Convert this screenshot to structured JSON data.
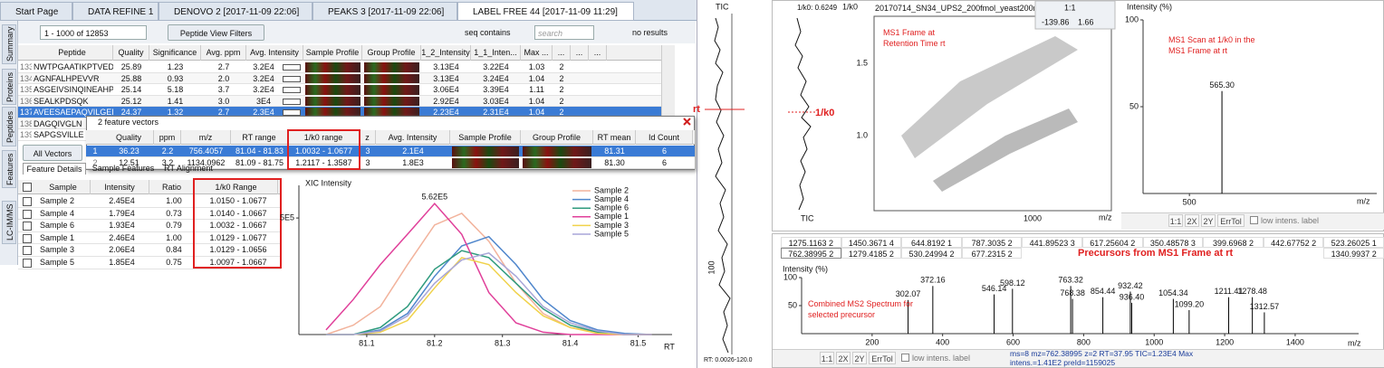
{
  "tabs": [
    "Start Page",
    "DATA REFINE 1",
    "DENOVO 2 [2017-11-09 22:06]",
    "PEAKS 3 [2017-11-09 22:06]",
    "LABEL FREE 44 [2017-11-09 11:29]"
  ],
  "side_tabs": [
    "Summary",
    "Proteins",
    "Peptides",
    "Features",
    "LC-IM/MS"
  ],
  "toolbar": {
    "range": "1 - 1000 of 12853",
    "filters": "Peptide View Filters",
    "filter_mode": "seq contains",
    "search": "search",
    "result": "no results"
  },
  "peptide_table": {
    "columns": [
      "Peptide",
      "Quality",
      "Significance",
      "Avg. ppm",
      "Avg. Intensity",
      "Sample Profile",
      "Group Profile",
      "1_2_Intensity",
      "1_1_Inten...",
      "Max ...",
      "...",
      "...",
      "..."
    ],
    "rows": [
      [
        "133",
        "NWTPGAATIKPTVEDSK",
        "25.89",
        "1.23",
        "2.7",
        "3.2E4",
        "3.13E4",
        "3.22E4",
        "1.03",
        "2"
      ],
      [
        "134",
        "AGNFALHPEVVR",
        "25.88",
        "0.93",
        "2.0",
        "3.2E4",
        "3.13E4",
        "3.24E4",
        "1.04",
        "2"
      ],
      [
        "135",
        "ASGEIVSINQINEAHPTK",
        "25.14",
        "5.18",
        "3.7",
        "3.2E4",
        "3.06E4",
        "3.39E4",
        "1.11",
        "2"
      ],
      [
        "136",
        "SEALKPDSQK",
        "25.12",
        "1.41",
        "3.0",
        "3E4",
        "2.92E4",
        "3.03E4",
        "1.04",
        "2"
      ],
      [
        "137",
        "AVEESAEPAQVILGED...",
        "24.37",
        "1.32",
        "2.7",
        "2.3E4",
        "2.23E4",
        "2.31E4",
        "1.04",
        "2"
      ],
      [
        "138",
        "DAGQIVGLN"
      ],
      [
        "139",
        "SAPGSVILLE"
      ]
    ]
  },
  "feature_vectors": {
    "title": "2 feature vectors",
    "columns": [
      "Quality",
      "ppm",
      "m/z",
      "RT range",
      "1/k0 range",
      "z",
      "Avg. Intensity",
      "Sample Profile",
      "Group Profile",
      "RT mean",
      "Id Count"
    ],
    "rows": [
      [
        "1",
        "36.23",
        "2.2",
        "756.4057",
        "81.04 - 81.83",
        "1.0032 - 1.0677",
        "3",
        "2.1E4",
        "81.31",
        "6"
      ],
      [
        "2",
        "12.51",
        "3.2",
        "1134.0962",
        "81.09 - 81.75",
        "1.2117 - 1.3587",
        "3",
        "1.8E3",
        "81.30",
        "6"
      ]
    ]
  },
  "features": {
    "button": "All Vectors",
    "subtabs": [
      "Feature Details",
      "Sample Features",
      "RT Alignment"
    ],
    "columns": [
      "Sample",
      "Intensity",
      "Ratio",
      "1/k0 Range"
    ],
    "rows": [
      [
        "Sample 2",
        "2.45E4",
        "1.00",
        "1.0150 - 1.0677"
      ],
      [
        "Sample 4",
        "1.79E4",
        "0.73",
        "1.0140 - 1.0667"
      ],
      [
        "Sample 6",
        "1.93E4",
        "0.79",
        "1.0032 - 1.0667"
      ],
      [
        "Sample 1",
        "2.46E4",
        "1.00",
        "1.0129 - 1.0677"
      ],
      [
        "Sample 3",
        "2.06E4",
        "0.84",
        "1.0129 - 1.0656"
      ],
      [
        "Sample 5",
        "1.85E4",
        "0.75",
        "1.0097 - 1.0667"
      ]
    ]
  },
  "tic": {
    "title": "TIC",
    "marker": "rt",
    "tick": "100",
    "range": "RT: 0.0026-120.0"
  },
  "k0_strip": {
    "readout": "1/k0: 0.6249",
    "marker": "1/k0",
    "title": "TIC"
  },
  "ms1_frame": {
    "y_label": "1/k0",
    "title": "20170714_SN34_UPS2_200fmol_yeast200ng_",
    "readout": [
      "-139.86",
      "1.66"
    ],
    "zoom": "1:1",
    "yticks": [
      "1.5",
      "1.0"
    ],
    "xticks": [
      "1000"
    ],
    "x_label": "m/z",
    "annotation": "MS1 Frame at Retention Time rt"
  },
  "spectrum_toolbar": {
    "buttons": [
      "1:1",
      "2X",
      "2Y",
      "ErrTol"
    ],
    "option": "low intens. label"
  },
  "precursors": {
    "rows": [
      [
        "1275.1163 2",
        "1450.3671 4",
        "644.8192 1",
        "787.3035 2",
        "441.89523 3",
        "617.25604 2",
        "350.48578 3",
        "399.6968 2",
        "442.67752 2",
        "523.26025 1"
      ],
      [
        "762.38995 2",
        "1279.4185 2",
        "530.24994 2",
        "677.2315 2",
        "1340.9937 2"
      ]
    ],
    "overlay": "Precursors from MS1 Frame at rt"
  },
  "status": "ms=8 mz=762.38995 z=2 RT=37.95 TIC=1.23E4 Max intens.=1.41E2 preId=1159025",
  "chart_data": [
    {
      "type": "line",
      "y_label": "XIC Intensity",
      "x_label": "RT",
      "x": [
        81.04,
        81.08,
        81.12,
        81.16,
        81.2,
        81.24,
        81.28,
        81.32,
        81.36,
        81.4,
        81.44,
        81.48,
        81.52
      ],
      "series": [
        {
          "name": "Sample 2",
          "color": "#f2b39c",
          "values": [
            0,
            40000,
            120000,
            300000,
            470000,
            520000,
            400000,
            220000,
            90000,
            30000,
            10000,
            0,
            0
          ]
        },
        {
          "name": "Sample 4",
          "color": "#4f86cc",
          "values": [
            0,
            0,
            20000,
            90000,
            250000,
            380000,
            420000,
            300000,
            150000,
            60000,
            20000,
            5000,
            0
          ]
        },
        {
          "name": "Sample 6",
          "color": "#2f9b7e",
          "values": [
            0,
            0,
            30000,
            120000,
            280000,
            360000,
            330000,
            220000,
            110000,
            40000,
            10000,
            0,
            0
          ]
        },
        {
          "name": "Sample 1",
          "color": "#e0409a",
          "values": [
            20000,
            150000,
            300000,
            430000,
            562000,
            430000,
            180000,
            50000,
            10000,
            0,
            0,
            0,
            0
          ]
        },
        {
          "name": "Sample 3",
          "color": "#f0d24a",
          "values": [
            0,
            0,
            10000,
            60000,
            200000,
            330000,
            300000,
            180000,
            80000,
            30000,
            5000,
            0,
            0
          ]
        },
        {
          "name": "Sample 5",
          "color": "#a8a6d8",
          "values": [
            0,
            0,
            15000,
            80000,
            220000,
            320000,
            350000,
            250000,
            120000,
            50000,
            15000,
            0,
            0
          ]
        }
      ],
      "xlim": [
        81.0,
        81.55
      ],
      "ylim": [
        0,
        640000
      ],
      "xticks": [
        81.1,
        81.2,
        81.3,
        81.4,
        81.5
      ],
      "yticks": [
        {
          "value": 500000,
          "label": "5E5"
        }
      ],
      "peak_label": "5.62E5"
    },
    {
      "type": "stem",
      "y_label": "Intensity (%)",
      "x_label": "m/z",
      "annotation": "MS1 Scan at 1/k0 in the MS1 Frame at rt",
      "x": [
        565.3
      ],
      "x_labels": [
        "565.30"
      ],
      "values": [
        59
      ],
      "color": "#000000",
      "xlim": [
        407,
        876
      ],
      "ylim": [
        0,
        100
      ],
      "xticks": [
        500
      ],
      "yticks": [
        50,
        100
      ]
    },
    {
      "type": "stem",
      "y_label": "Intensity (%)",
      "x_label": "m/z",
      "annotation": "Combined MS2 Spectrum for selected precursor",
      "x": [
        302.07,
        372.16,
        546.14,
        598.12,
        763.32,
        768.38,
        854.44,
        932.42,
        936.4,
        1054.34,
        1099.2,
        1211.41,
        1278.48,
        1312.57
      ],
      "x_labels": [
        "302.07",
        "372.16",
        "546.14",
        "598.12",
        "763.32",
        "768.38",
        "854.44",
        "932.42",
        "936.40",
        "1054.34",
        "1099.20",
        "1211.41",
        "1278.48",
        "1312.57"
      ],
      "values": [
        60,
        85,
        70,
        80,
        85,
        62,
        65,
        75,
        55,
        62,
        42,
        65,
        65,
        38
      ],
      "color": "#000000",
      "xlim": [
        0,
        1580
      ],
      "ylim": [
        0,
        100
      ],
      "xticks": [
        200,
        400,
        600,
        800,
        1000,
        1200,
        1400
      ],
      "yticks": [
        50,
        100
      ]
    }
  ]
}
